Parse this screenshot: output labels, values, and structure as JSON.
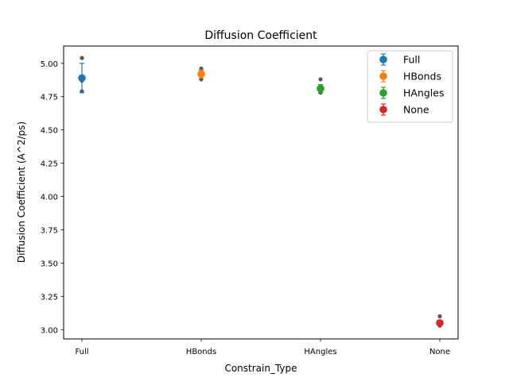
{
  "chart_data": {
    "type": "scatter",
    "title": "Diffusion Coefficient",
    "xlabel": "Constrain_Type",
    "ylabel": "Diffusion Coefficient (A^2/ps)",
    "categories": [
      "Full",
      "HBonds",
      "HAngles",
      "None"
    ],
    "ylim": [
      2.93,
      5.13
    ],
    "yticks": [
      "3.00",
      "3.25",
      "3.50",
      "3.75",
      "4.00",
      "4.25",
      "4.50",
      "4.75",
      "5.00"
    ],
    "grid": false,
    "legend_position": "top-right",
    "series": [
      {
        "name": "Full",
        "color": "#1f77b4",
        "mean": 4.89,
        "yerr": 0.11,
        "samples": [
          5.04,
          4.89,
          4.87,
          4.79
        ]
      },
      {
        "name": "HBonds",
        "color": "#ff7f0e",
        "mean": 4.92,
        "yerr": 0.03,
        "samples": [
          4.96,
          4.94,
          4.91,
          4.88
        ]
      },
      {
        "name": "HAngles",
        "color": "#2ca02c",
        "mean": 4.81,
        "yerr": 0.03,
        "samples": [
          4.88,
          4.83,
          4.8,
          4.78
        ]
      },
      {
        "name": "None",
        "color": "#d62728",
        "mean": 3.05,
        "yerr": 0.02,
        "samples": [
          3.1,
          3.06,
          3.04,
          3.03
        ]
      }
    ],
    "sample_color": "#555555"
  }
}
